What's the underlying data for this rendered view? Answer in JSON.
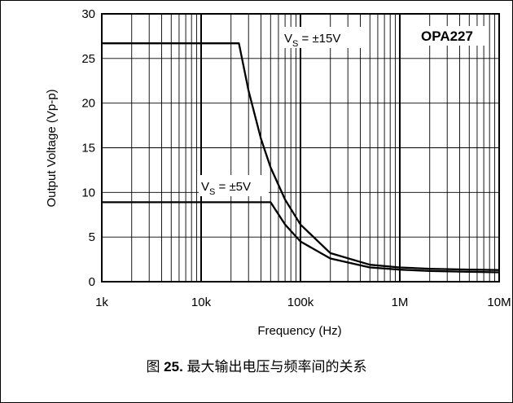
{
  "chart_data": {
    "type": "line",
    "title": "",
    "xlabel": "Frequency (Hz)",
    "ylabel": "Output Voltage (Vp-p)",
    "xscale": "log",
    "xlim": [
      1000,
      10000000
    ],
    "ylim": [
      0,
      30
    ],
    "x_ticks": [
      1000,
      10000,
      100000,
      1000000,
      10000000
    ],
    "x_tick_labels": [
      "1k",
      "10k",
      "100k",
      "1M",
      "10M"
    ],
    "y_ticks": [
      0,
      5,
      10,
      15,
      20,
      25,
      30
    ],
    "y_tick_labels": [
      "0",
      "5",
      "10",
      "15",
      "20",
      "25",
      "30"
    ],
    "grid": true,
    "device_label": "OPA227",
    "series": [
      {
        "annotation_main": "V",
        "annotation_sub": "S",
        "annotation_rest": " = ±15V",
        "x": [
          1000,
          24000,
          30000,
          40000,
          50000,
          70000,
          100000,
          200000,
          500000,
          1000000,
          2000000,
          5000000,
          10000000
        ],
        "y": [
          26.7,
          26.7,
          21.4,
          16.0,
          12.8,
          9.2,
          6.4,
          3.2,
          1.9,
          1.6,
          1.45,
          1.35,
          1.3
        ]
      },
      {
        "annotation_main": "V",
        "annotation_sub": "S",
        "annotation_rest": " = ±5V",
        "x": [
          1000,
          50000,
          70000,
          100000,
          200000,
          500000,
          1000000,
          2000000,
          5000000,
          10000000
        ],
        "y": [
          8.9,
          8.9,
          6.4,
          4.5,
          2.6,
          1.6,
          1.35,
          1.2,
          1.1,
          1.05
        ]
      }
    ]
  },
  "caption": {
    "prefix": "图 ",
    "number": "25.",
    "text": " 最大输出电压与频率间的关系"
  }
}
